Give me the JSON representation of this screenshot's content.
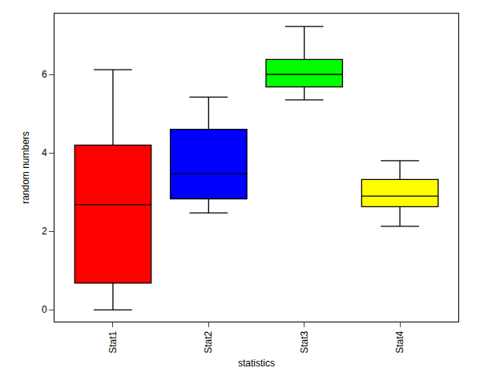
{
  "chart_data": {
    "type": "box",
    "x_label": "statistics",
    "y_label": "random numbers",
    "categories": [
      "Stat1",
      "Stat2",
      "Stat3",
      "Stat4"
    ],
    "colors": [
      "#ff0000",
      "#0000ff",
      "#00ff00",
      "#ffff00"
    ],
    "min": [
      0.0,
      2.47,
      5.35,
      2.13
    ],
    "q1": [
      0.68,
      2.83,
      5.68,
      2.63
    ],
    "median": [
      2.68,
      3.47,
      6.0,
      2.9
    ],
    "q3": [
      4.2,
      4.6,
      6.38,
      3.32
    ],
    "max": [
      6.12,
      5.42,
      7.22,
      3.8
    ],
    "ylim": [
      -0.3,
      7.55
    ],
    "yticks": [
      0,
      2,
      4,
      6
    ],
    "grid": false
  }
}
